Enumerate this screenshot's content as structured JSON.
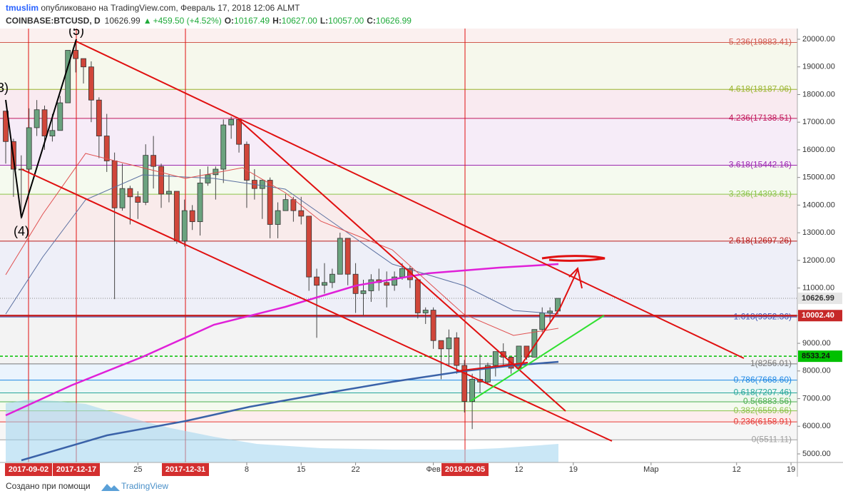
{
  "header": {
    "author": "tmuslim",
    "published": " опубликовано на TradingView.com, Февраль 17, 2018 12:06 ALMT",
    "symbol": "COINBASE:BTCUSD, D",
    "last": "10626.99",
    "arrow": "▲",
    "change": "+459.50 (+4.52%)",
    "o_label": "O:",
    "o": "10167.49",
    "h_label": "H:",
    "h": "10627.00",
    "l_label": "L:",
    "l": "10057.00",
    "c_label": "C:",
    "c": "10626.99"
  },
  "chart_data": {
    "type": "candlestick",
    "x": [
      "2017-12-08",
      "2017-12-09",
      "2017-12-10",
      "2017-12-11",
      "2017-12-12",
      "2017-12-13",
      "2017-12-14",
      "2017-12-15",
      "2017-12-16",
      "2017-12-17",
      "2017-12-18",
      "2017-12-19",
      "2017-12-20",
      "2017-12-21",
      "2017-12-22",
      "2017-12-23",
      "2017-12-24",
      "2017-12-25",
      "2017-12-26",
      "2017-12-27",
      "2017-12-28",
      "2017-12-29",
      "2017-12-30",
      "2017-12-31",
      "2018-01-01",
      "2018-01-02",
      "2018-01-03",
      "2018-01-04",
      "2018-01-05",
      "2018-01-06",
      "2018-01-07",
      "2018-01-08",
      "2018-01-09",
      "2018-01-10",
      "2018-01-11",
      "2018-01-12",
      "2018-01-13",
      "2018-01-14",
      "2018-01-15",
      "2018-01-16",
      "2018-01-17",
      "2018-01-18",
      "2018-01-19",
      "2018-01-20",
      "2018-01-21",
      "2018-01-22",
      "2018-01-23",
      "2018-01-24",
      "2018-01-25",
      "2018-01-26",
      "2018-01-27",
      "2018-01-28",
      "2018-01-29",
      "2018-01-30",
      "2018-01-31",
      "2018-02-01",
      "2018-02-02",
      "2018-02-03",
      "2018-02-04",
      "2018-02-05",
      "2018-02-06",
      "2018-02-07",
      "2018-02-08",
      "2018-02-09",
      "2018-02-10",
      "2018-02-11",
      "2018-02-12",
      "2018-02-13",
      "2018-02-14",
      "2018-02-15",
      "2018-02-16",
      "2018-02-17"
    ],
    "ohlc": [
      [
        17400,
        17400,
        15500,
        16300
      ],
      [
        16300,
        16400,
        14300,
        15300
      ],
      [
        15300,
        15800,
        13500,
        15300
      ],
      [
        15300,
        17500,
        15200,
        16800
      ],
      [
        16800,
        17800,
        16500,
        17450
      ],
      [
        17450,
        17600,
        16000,
        16500
      ],
      [
        16500,
        17300,
        16300,
        16700
      ],
      [
        16700,
        17950,
        16700,
        17700
      ],
      [
        17700,
        19600,
        17700,
        19600
      ],
      [
        19600,
        19891,
        18800,
        19300
      ],
      [
        19300,
        19300,
        18400,
        19000
      ],
      [
        19000,
        19200,
        17000,
        17800
      ],
      [
        17800,
        17900,
        15700,
        16500
      ],
      [
        16500,
        17300,
        15200,
        15600
      ],
      [
        15600,
        15900,
        10600,
        13900
      ],
      [
        13900,
        15500,
        13800,
        14600
      ],
      [
        14600,
        14700,
        13300,
        14300
      ],
      [
        14300,
        14500,
        13500,
        14100
      ],
      [
        14100,
        16200,
        14000,
        15800
      ],
      [
        15800,
        16500,
        14600,
        15400
      ],
      [
        15400,
        15500,
        13900,
        14400
      ],
      [
        14400,
        15100,
        14100,
        14500
      ],
      [
        14500,
        14500,
        12600,
        12700
      ],
      [
        12700,
        14200,
        12500,
        13800
      ],
      [
        13800,
        14000,
        13100,
        13400
      ],
      [
        13400,
        15300,
        12900,
        14800
      ],
      [
        14800,
        15400,
        14700,
        15100
      ],
      [
        15100,
        15400,
        14200,
        15300
      ],
      [
        15300,
        17100,
        14800,
        16900
      ],
      [
        16900,
        17200,
        16400,
        17100
      ],
      [
        17100,
        17100,
        15900,
        16200
      ],
      [
        16200,
        16300,
        13900,
        14900
      ],
      [
        14900,
        15300,
        14200,
        14600
      ],
      [
        14600,
        14900,
        13500,
        14900
      ],
      [
        14900,
        15000,
        12800,
        13300
      ],
      [
        13300,
        14100,
        12800,
        13800
      ],
      [
        13800,
        14400,
        13800,
        14200
      ],
      [
        14200,
        14300,
        13400,
        13800
      ],
      [
        13800,
        14300,
        13300,
        13600
      ],
      [
        13600,
        13600,
        10900,
        11400
      ],
      [
        11400,
        11700,
        9200,
        11100
      ],
      [
        11100,
        11900,
        10800,
        11200
      ],
      [
        11200,
        11700,
        11000,
        11500
      ],
      [
        11500,
        13000,
        11500,
        12800
      ],
      [
        12800,
        12800,
        11100,
        11500
      ],
      [
        11500,
        11900,
        10100,
        10800
      ],
      [
        10800,
        11300,
        10000,
        10900
      ],
      [
        10900,
        11500,
        10500,
        11300
      ],
      [
        11300,
        11700,
        10900,
        11200
      ],
      [
        11200,
        11600,
        10300,
        11100
      ],
      [
        11100,
        11600,
        10900,
        11400
      ],
      [
        11400,
        11900,
        11300,
        11700
      ],
      [
        11700,
        11800,
        11000,
        11300
      ],
      [
        11300,
        11300,
        9900,
        10100
      ],
      [
        10100,
        10300,
        9700,
        10200
      ],
      [
        10200,
        10300,
        8800,
        9100
      ],
      [
        9100,
        9100,
        7700,
        8800
      ],
      [
        8800,
        9500,
        8200,
        9200
      ],
      [
        9200,
        9400,
        7900,
        8200
      ],
      [
        8200,
        8400,
        6500,
        6900
      ],
      [
        6900,
        7900,
        5900,
        7700
      ],
      [
        7700,
        8600,
        7200,
        7600
      ],
      [
        7600,
        8300,
        7500,
        8200
      ],
      [
        8200,
        8700,
        7800,
        8700
      ],
      [
        8700,
        9000,
        8200,
        8500
      ],
      [
        8500,
        8500,
        7900,
        8100
      ],
      [
        8100,
        8900,
        8100,
        8900
      ],
      [
        8900,
        8900,
        8400,
        8500
      ],
      [
        8500,
        9500,
        8500,
        9500
      ],
      [
        9500,
        10300,
        9400,
        10100
      ],
      [
        10100,
        10300,
        9700,
        10167.49
      ],
      [
        10167.49,
        10627,
        10057,
        10626.99
      ]
    ],
    "up_color": "#6ba37f",
    "down_color": "#d0463a",
    "xlim": [
      "2017-12-08",
      "2018-03-20"
    ],
    "xticks": [
      {
        "value": "2017-12-25",
        "label": "25"
      },
      {
        "value": "2018-01-08",
        "label": "8"
      },
      {
        "value": "2018-01-15",
        "label": "15"
      },
      {
        "value": "2018-01-22",
        "label": "22"
      },
      {
        "value": "2018-02-01",
        "label": "Фев"
      },
      {
        "value": "2018-02-12",
        "label": "12"
      },
      {
        "value": "2018-02-19",
        "label": "19"
      },
      {
        "value": "2018-03-01",
        "label": "Мар"
      },
      {
        "value": "2018-03-12",
        "label": "12"
      },
      {
        "value": "2018-03-19",
        "label": "19"
      }
    ],
    "ylim": [
      4690,
      20387
    ],
    "yticks": [
      {
        "value": 20000,
        "label": "20000.00"
      },
      {
        "value": 19000,
        "label": "19000.00"
      },
      {
        "value": 18000,
        "label": "18000.00"
      },
      {
        "value": 17000,
        "label": "17000.00"
      },
      {
        "value": 16000,
        "label": "16000.00"
      },
      {
        "value": 15000,
        "label": "15000.00"
      },
      {
        "value": 14000,
        "label": "14000.00"
      },
      {
        "value": 13000,
        "label": "13000.00"
      },
      {
        "value": 12000,
        "label": "12000.00"
      },
      {
        "value": 11000,
        "label": "11000.00"
      },
      {
        "value": 10000,
        "label": "10000.00"
      },
      {
        "value": 9000,
        "label": "9000.00"
      },
      {
        "value": 8000,
        "label": "8000.00"
      },
      {
        "value": 7000,
        "label": "7000.00"
      },
      {
        "value": 6000,
        "label": "6000.00"
      },
      {
        "value": 5000,
        "label": "5000.00"
      }
    ],
    "fib_levels": [
      {
        "label": "5.236(19883.41)",
        "value": 19883.41,
        "color": "#d05a4e"
      },
      {
        "label": "4.618(18187.06)",
        "value": 18187.06,
        "color": "#9ab52d"
      },
      {
        "label": "4.236(17138.51)",
        "value": 17138.51,
        "color": "#c2185b"
      },
      {
        "label": "3.618(15442.16)",
        "value": 15442.16,
        "color": "#9c27b0"
      },
      {
        "label": "3.236(14393.61)",
        "value": 14393.61,
        "color": "#8bc34a"
      },
      {
        "label": "2.618(12697.26)",
        "value": 12697.26,
        "color": "#b71c1c"
      },
      {
        "label": "1.618(9952.36)",
        "value": 9952.36,
        "color": "#3f51b5"
      },
      {
        "label": "1(8256.01)",
        "value": 8256.01,
        "color": "#787878"
      },
      {
        "label": "0.786(7668.60)",
        "value": 7668.6,
        "color": "#1e88e5"
      },
      {
        "label": "0.618(7207.46)",
        "value": 7207.46,
        "color": "#26a69a"
      },
      {
        "label": "0.5(6883.56)",
        "value": 6883.56,
        "color": "#4caf50"
      },
      {
        "label": "0.382(6559.66)",
        "value": 6559.66,
        "color": "#8bc34a"
      },
      {
        "label": "0.236(6158.91)",
        "value": 6158.91,
        "color": "#e53935"
      },
      {
        "label": "0(5511.11)",
        "value": 5511.11,
        "color": "#9e9e9e"
      }
    ],
    "price_labels": [
      {
        "value": 10626.99,
        "label": "10626.99",
        "color": "#e6e6e6",
        "text_color": "#333"
      },
      {
        "value": 10002.4,
        "label": "10002.40",
        "color": "#c62828",
        "text_color": "#fff"
      },
      {
        "value": 8533.24,
        "label": "8533.24",
        "color": "#00c000",
        "text_color": "#111"
      }
    ],
    "markers": [
      {
        "label": "2017-09-02"
      },
      {
        "label": "2017-12-17"
      },
      {
        "label": "2017-12-31"
      },
      {
        "label": "2018-02-05"
      }
    ],
    "waves": [
      {
        "label": "(5)"
      },
      {
        "label": "(4)"
      },
      {
        "label": "3)"
      }
    ]
  },
  "footer": {
    "made_with": "Создано при помощи",
    "brand": "TradingView"
  }
}
